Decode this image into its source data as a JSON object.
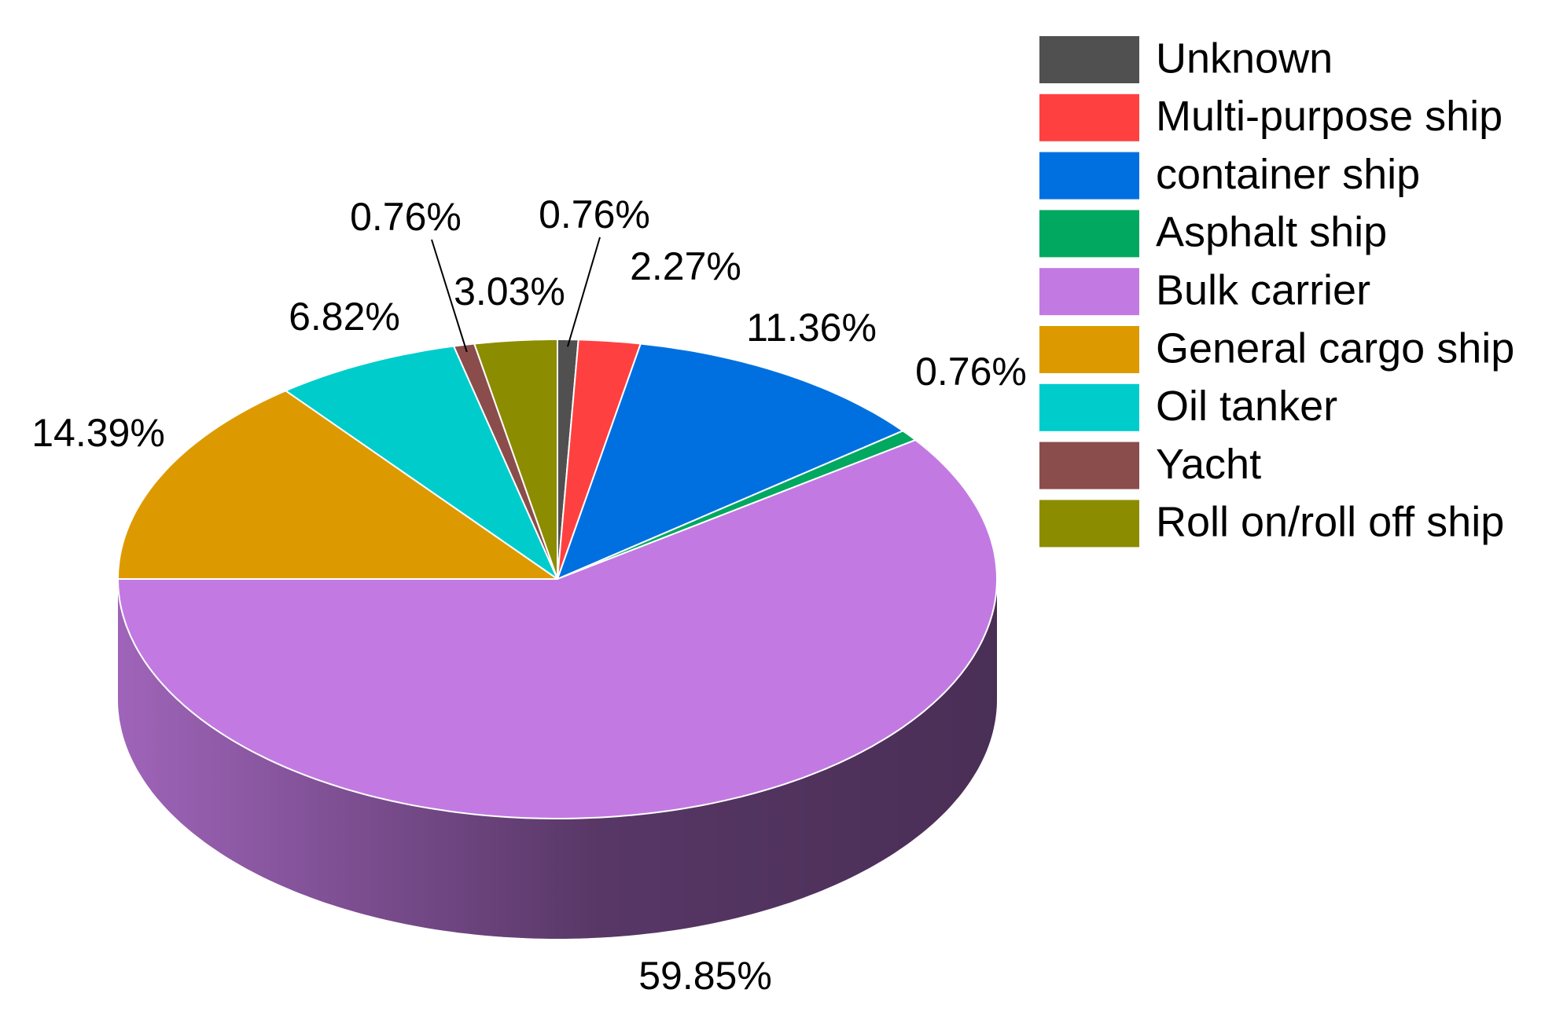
{
  "chart_data": {
    "type": "pie",
    "categories": [
      "Unknown",
      "Multi-purpose ship",
      "container ship",
      "Asphalt ship",
      "Bulk carrier",
      "General cargo ship",
      "Oil tanker",
      "Yacht",
      "Roll on/roll off ship"
    ],
    "values": [
      0.76,
      2.27,
      11.36,
      0.76,
      59.85,
      14.39,
      6.82,
      0.76,
      3.03
    ],
    "value_labels": [
      "0.76%",
      "2.27%",
      "11.36%",
      "0.76%",
      "59.85%",
      "14.39%",
      "6.82%",
      "0.76%",
      "3.03%"
    ],
    "colors": [
      "#505050",
      "#ff4040",
      "#0070e0",
      "#00a860",
      "#c27ae2",
      "#dc9a00",
      "#00cccc",
      "#8b4c4c",
      "#8c8c00"
    ],
    "legend": "upper right"
  }
}
